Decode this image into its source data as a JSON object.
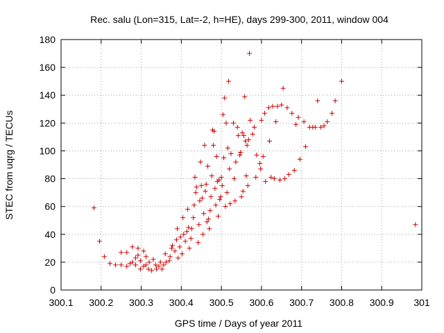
{
  "chart_data": {
    "type": "scatter",
    "title": "Rec. salu (Lon=315, Lat=-2, h=HE), days 299-300, 2011, window 004",
    "xlabel": "GPS time / Days of year 2011",
    "ylabel": "STEC from uqrg / TECUs",
    "xlim": [
      300.1,
      301.0
    ],
    "ylim": [
      0,
      180
    ],
    "xticks": [
      300.1,
      300.2,
      300.3,
      300.4,
      300.5,
      300.6,
      300.7,
      300.8,
      300.9,
      301.0
    ],
    "xtick_labels": [
      "300.1",
      "300.2",
      "300.3",
      "300.4",
      "300.5",
      "300.6",
      "300.7",
      "300.8",
      "300.9",
      "301"
    ],
    "yticks": [
      0,
      20,
      40,
      60,
      80,
      100,
      120,
      140,
      160,
      180
    ],
    "ytick_labels": [
      "0",
      "20",
      "40",
      "60",
      "80",
      "100",
      "120",
      "140",
      "160",
      "180"
    ],
    "grid": true,
    "marker": "plus",
    "marker_color": "#cc0000",
    "series": [
      {
        "name": "STEC",
        "points": [
          [
            300.182,
            59
          ],
          [
            300.196,
            35
          ],
          [
            300.208,
            24
          ],
          [
            300.222,
            19
          ],
          [
            300.236,
            18
          ],
          [
            300.25,
            18
          ],
          [
            300.25,
            27
          ],
          [
            300.264,
            17
          ],
          [
            300.264,
            27
          ],
          [
            300.272,
            19
          ],
          [
            300.278,
            20
          ],
          [
            300.278,
            31
          ],
          [
            300.286,
            18
          ],
          [
            300.286,
            23
          ],
          [
            300.292,
            25
          ],
          [
            300.292,
            30
          ],
          [
            300.298,
            15
          ],
          [
            300.298,
            21
          ],
          [
            300.306,
            17
          ],
          [
            300.306,
            28
          ],
          [
            300.312,
            18
          ],
          [
            300.312,
            24
          ],
          [
            300.318,
            15
          ],
          [
            300.32,
            20
          ],
          [
            300.326,
            14
          ],
          [
            300.33,
            22
          ],
          [
            300.336,
            18
          ],
          [
            300.338,
            15
          ],
          [
            300.344,
            17
          ],
          [
            300.348,
            20
          ],
          [
            300.352,
            15
          ],
          [
            300.356,
            18
          ],
          [
            300.36,
            26
          ],
          [
            300.362,
            20
          ],
          [
            300.37,
            21
          ],
          [
            300.372,
            24
          ],
          [
            300.376,
            30
          ],
          [
            300.378,
            32
          ],
          [
            300.384,
            28
          ],
          [
            300.388,
            36
          ],
          [
            300.39,
            44
          ],
          [
            300.392,
            23
          ],
          [
            300.396,
            31
          ],
          [
            300.398,
            38
          ],
          [
            300.402,
            26
          ],
          [
            300.404,
            52
          ],
          [
            300.406,
            40
          ],
          [
            300.41,
            35
          ],
          [
            300.414,
            42
          ],
          [
            300.416,
            58
          ],
          [
            300.418,
            45
          ],
          [
            300.42,
            30
          ],
          [
            300.424,
            37
          ],
          [
            300.426,
            44
          ],
          [
            300.43,
            52
          ],
          [
            300.432,
            61
          ],
          [
            300.434,
            81
          ],
          [
            300.436,
            70
          ],
          [
            300.438,
            74
          ],
          [
            300.442,
            34
          ],
          [
            300.444,
            47
          ],
          [
            300.446,
            64
          ],
          [
            300.448,
            92
          ],
          [
            300.45,
            75
          ],
          [
            300.452,
            66
          ],
          [
            300.454,
            40
          ],
          [
            300.456,
            55
          ],
          [
            300.458,
            104
          ],
          [
            300.46,
            71
          ],
          [
            300.462,
            76
          ],
          [
            300.464,
            49
          ],
          [
            300.466,
            89
          ],
          [
            300.468,
            51
          ],
          [
            300.47,
            44
          ],
          [
            300.472,
            57
          ],
          [
            300.474,
            67
          ],
          [
            300.476,
            82
          ],
          [
            300.478,
            115
          ],
          [
            300.48,
            104
          ],
          [
            300.482,
            114
          ],
          [
            300.484,
            73
          ],
          [
            300.486,
            61
          ],
          [
            300.488,
            96
          ],
          [
            300.49,
            78
          ],
          [
            300.492,
            53
          ],
          [
            300.494,
            79
          ],
          [
            300.496,
            65
          ],
          [
            300.498,
            67
          ],
          [
            300.5,
            81
          ],
          [
            300.502,
            75
          ],
          [
            300.504,
            126
          ],
          [
            300.506,
            95
          ],
          [
            300.508,
            138
          ],
          [
            300.51,
            60
          ],
          [
            300.512,
            120
          ],
          [
            300.514,
            70
          ],
          [
            300.516,
            102
          ],
          [
            300.518,
            150
          ],
          [
            300.52,
            87
          ],
          [
            300.522,
            62
          ],
          [
            300.524,
            98
          ],
          [
            300.53,
            120
          ],
          [
            300.532,
            80
          ],
          [
            300.534,
            64
          ],
          [
            300.536,
            92
          ],
          [
            300.54,
            117
          ],
          [
            300.542,
            111
          ],
          [
            300.546,
            97
          ],
          [
            300.548,
            99
          ],
          [
            300.55,
            67
          ],
          [
            300.552,
            113
          ],
          [
            300.554,
            71
          ],
          [
            300.556,
            111
          ],
          [
            300.558,
            139
          ],
          [
            300.56,
            107
          ],
          [
            300.562,
            82
          ],
          [
            300.564,
            104
          ],
          [
            300.566,
            75
          ],
          [
            300.568,
            108
          ],
          [
            300.57,
            170
          ],
          [
            300.572,
            122
          ],
          [
            300.578,
            112
          ],
          [
            300.582,
            117
          ],
          [
            300.586,
            81
          ],
          [
            300.588,
            97
          ],
          [
            300.596,
            91
          ],
          [
            300.598,
            87
          ],
          [
            300.6,
            122
          ],
          [
            300.604,
            96
          ],
          [
            300.608,
            127
          ],
          [
            300.61,
            78
          ],
          [
            300.618,
            131
          ],
          [
            300.62,
            107
          ],
          [
            300.624,
            81
          ],
          [
            300.628,
            132
          ],
          [
            300.632,
            80
          ],
          [
            300.636,
            121
          ],
          [
            300.64,
            132
          ],
          [
            300.646,
            79
          ],
          [
            300.65,
            133
          ],
          [
            300.654,
            145
          ],
          [
            300.658,
            80
          ],
          [
            300.664,
            131
          ],
          [
            300.668,
            83
          ],
          [
            300.676,
            127
          ],
          [
            300.682,
            86
          ],
          [
            300.686,
            119
          ],
          [
            300.692,
            124
          ],
          [
            300.696,
            94
          ],
          [
            300.706,
            121
          ],
          [
            300.71,
            103
          ],
          [
            300.72,
            117
          ],
          [
            300.728,
            117
          ],
          [
            300.734,
            117
          ],
          [
            300.74,
            136
          ],
          [
            300.748,
            117
          ],
          [
            300.756,
            118
          ],
          [
            300.764,
            121
          ],
          [
            300.776,
            127
          ],
          [
            300.784,
            136
          ],
          [
            300.8,
            150
          ],
          [
            300.984,
            47
          ]
        ]
      }
    ]
  }
}
